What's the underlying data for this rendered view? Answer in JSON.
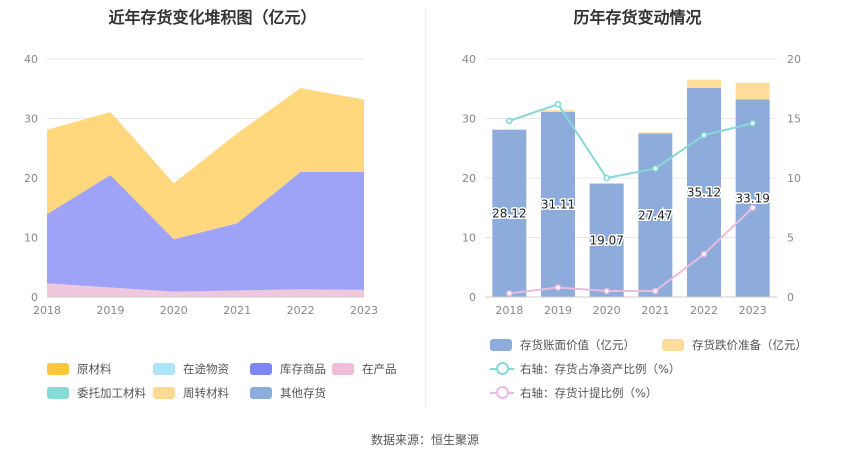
{
  "source": "数据来源：恒生聚源",
  "chart_data": [
    {
      "type": "area",
      "stacked": true,
      "title": "近年存货变化堆积图（亿元）",
      "categories": [
        "2018",
        "2019",
        "2020",
        "2021",
        "2022",
        "2023"
      ],
      "ylim": [
        0,
        40
      ],
      "yticks": [
        "0",
        "10",
        "20",
        "30",
        "40"
      ],
      "series": [
        {
          "name": "在产品",
          "color": "#f0c8dd",
          "values": [
            2.3,
            1.6,
            0.9,
            1.1,
            1.3,
            1.2
          ]
        },
        {
          "name": "库存商品",
          "color": "#9fa3f7",
          "values": [
            11.6,
            18.9,
            8.8,
            11.3,
            19.7,
            19.8
          ]
        },
        {
          "name": "周转材料",
          "color": "#ffd77d",
          "values": [
            14.2,
            10.6,
            9.4,
            15.1,
            14.1,
            12.2
          ]
        }
      ],
      "legend": [
        {
          "name": "原材料",
          "color": "#ffc53d"
        },
        {
          "name": "在途物资",
          "color": "#aee4fa"
        },
        {
          "name": "库存商品",
          "color": "#8085f5"
        },
        {
          "name": "在产品",
          "color": "#f0bcd8"
        },
        {
          "name": "委托加工材料",
          "color": "#85dbd6"
        },
        {
          "name": "周转材料",
          "color": "#ffd98f"
        },
        {
          "name": "其他存货",
          "color": "#8cacdc"
        }
      ]
    },
    {
      "type": "bar",
      "title": "历年存货变动情况",
      "categories": [
        "2018",
        "2019",
        "2020",
        "2021",
        "2022",
        "2023"
      ],
      "ylim": [
        0,
        40
      ],
      "y2lim": [
        0,
        20
      ],
      "yticks": [
        "0",
        "10",
        "20",
        "30",
        "40"
      ],
      "y2ticks": [
        "0",
        "5",
        "10",
        "15",
        "20"
      ],
      "series": [
        {
          "name": "存货账面价值（亿元）",
          "kind": "bar",
          "color": "#8dacdc",
          "values": [
            28.12,
            31.11,
            19.07,
            27.47,
            35.12,
            33.19
          ],
          "labels": [
            "28.12",
            "31.11",
            "19.07",
            "27.47",
            "35.12",
            "33.19"
          ]
        },
        {
          "name": "存货跌价准备（亿元）",
          "kind": "bar",
          "color": "#ffdc9a",
          "values": [
            0.0,
            0.3,
            0.0,
            0.2,
            1.4,
            2.8
          ]
        },
        {
          "name": "右轴：存货占净资产比例（%）",
          "kind": "line",
          "color": "#86d8d9",
          "values": [
            14.8,
            16.2,
            10.0,
            10.8,
            13.6,
            14.6
          ]
        },
        {
          "name": "右轴：存货计提比例（%）",
          "kind": "line",
          "color": "#e8bce0",
          "values": [
            0.3,
            0.8,
            0.5,
            0.5,
            3.6,
            7.5
          ]
        }
      ]
    }
  ]
}
